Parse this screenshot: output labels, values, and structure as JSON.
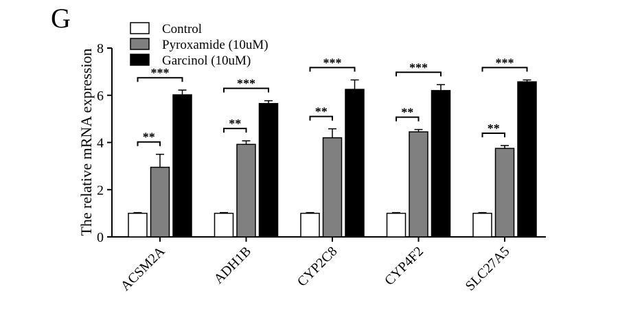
{
  "panel_letter": "G",
  "chart_data": {
    "type": "bar",
    "title": "",
    "xlabel": "",
    "ylabel": "The relative mRNA expression",
    "ylim": [
      0,
      8
    ],
    "yticks": [
      0,
      2,
      4,
      6,
      8
    ],
    "categories": [
      "ACSM2A",
      "ADH1B",
      "CYP2C8",
      "CYP4F2",
      "SLC27A5"
    ],
    "series": [
      {
        "name": "Control",
        "color": "#ffffff",
        "values": [
          1.0,
          1.0,
          1.0,
          1.0,
          1.0
        ],
        "errors": [
          0.03,
          0.03,
          0.03,
          0.03,
          0.03
        ]
      },
      {
        "name": "Pyroxamide (10uM)",
        "color": "#808080",
        "values": [
          2.95,
          3.92,
          4.2,
          4.45,
          3.75
        ],
        "errors": [
          0.55,
          0.15,
          0.38,
          0.1,
          0.12
        ]
      },
      {
        "name": "Garcinol (10uM)",
        "color": "#000000",
        "values": [
          6.02,
          5.65,
          6.25,
          6.2,
          6.57
        ],
        "errors": [
          0.2,
          0.12,
          0.4,
          0.25,
          0.08
        ]
      }
    ],
    "significance": [
      {
        "category": "ACSM2A",
        "pyro": "**",
        "garc": "***"
      },
      {
        "category": "ADH1B",
        "pyro": "**",
        "garc": "***"
      },
      {
        "category": "CYP2C8",
        "pyro": "**",
        "garc": "***"
      },
      {
        "category": "CYP4F2",
        "pyro": "**",
        "garc": "***"
      },
      {
        "category": "SLC27A5",
        "pyro": "**",
        "garc": "***"
      }
    ],
    "legend_position": "top-left"
  }
}
